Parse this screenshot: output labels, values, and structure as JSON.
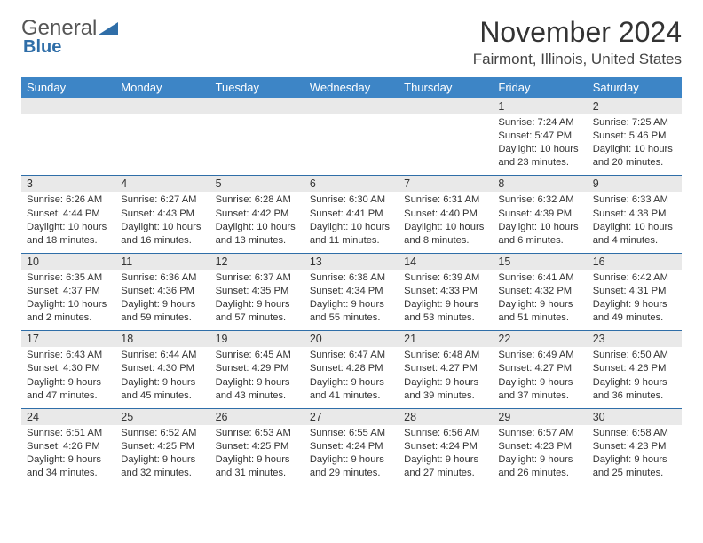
{
  "logo": {
    "word1": "General",
    "word2": "Blue"
  },
  "header": {
    "month_title": "November 2024",
    "location": "Fairmont, Illinois, United States"
  },
  "colors": {
    "header_bg": "#3d85c6",
    "rule": "#2f6ea8",
    "daynum_bg": "#e9e9e9"
  },
  "weekday_labels": [
    "Sunday",
    "Monday",
    "Tuesday",
    "Wednesday",
    "Thursday",
    "Friday",
    "Saturday"
  ],
  "weeks": [
    [
      {
        "day": "",
        "sunrise": "",
        "sunset": "",
        "daylight": ""
      },
      {
        "day": "",
        "sunrise": "",
        "sunset": "",
        "daylight": ""
      },
      {
        "day": "",
        "sunrise": "",
        "sunset": "",
        "daylight": ""
      },
      {
        "day": "",
        "sunrise": "",
        "sunset": "",
        "daylight": ""
      },
      {
        "day": "",
        "sunrise": "",
        "sunset": "",
        "daylight": ""
      },
      {
        "day": "1",
        "sunrise": "Sunrise: 7:24 AM",
        "sunset": "Sunset: 5:47 PM",
        "daylight": "Daylight: 10 hours and 23 minutes."
      },
      {
        "day": "2",
        "sunrise": "Sunrise: 7:25 AM",
        "sunset": "Sunset: 5:46 PM",
        "daylight": "Daylight: 10 hours and 20 minutes."
      }
    ],
    [
      {
        "day": "3",
        "sunrise": "Sunrise: 6:26 AM",
        "sunset": "Sunset: 4:44 PM",
        "daylight": "Daylight: 10 hours and 18 minutes."
      },
      {
        "day": "4",
        "sunrise": "Sunrise: 6:27 AM",
        "sunset": "Sunset: 4:43 PM",
        "daylight": "Daylight: 10 hours and 16 minutes."
      },
      {
        "day": "5",
        "sunrise": "Sunrise: 6:28 AM",
        "sunset": "Sunset: 4:42 PM",
        "daylight": "Daylight: 10 hours and 13 minutes."
      },
      {
        "day": "6",
        "sunrise": "Sunrise: 6:30 AM",
        "sunset": "Sunset: 4:41 PM",
        "daylight": "Daylight: 10 hours and 11 minutes."
      },
      {
        "day": "7",
        "sunrise": "Sunrise: 6:31 AM",
        "sunset": "Sunset: 4:40 PM",
        "daylight": "Daylight: 10 hours and 8 minutes."
      },
      {
        "day": "8",
        "sunrise": "Sunrise: 6:32 AM",
        "sunset": "Sunset: 4:39 PM",
        "daylight": "Daylight: 10 hours and 6 minutes."
      },
      {
        "day": "9",
        "sunrise": "Sunrise: 6:33 AM",
        "sunset": "Sunset: 4:38 PM",
        "daylight": "Daylight: 10 hours and 4 minutes."
      }
    ],
    [
      {
        "day": "10",
        "sunrise": "Sunrise: 6:35 AM",
        "sunset": "Sunset: 4:37 PM",
        "daylight": "Daylight: 10 hours and 2 minutes."
      },
      {
        "day": "11",
        "sunrise": "Sunrise: 6:36 AM",
        "sunset": "Sunset: 4:36 PM",
        "daylight": "Daylight: 9 hours and 59 minutes."
      },
      {
        "day": "12",
        "sunrise": "Sunrise: 6:37 AM",
        "sunset": "Sunset: 4:35 PM",
        "daylight": "Daylight: 9 hours and 57 minutes."
      },
      {
        "day": "13",
        "sunrise": "Sunrise: 6:38 AM",
        "sunset": "Sunset: 4:34 PM",
        "daylight": "Daylight: 9 hours and 55 minutes."
      },
      {
        "day": "14",
        "sunrise": "Sunrise: 6:39 AM",
        "sunset": "Sunset: 4:33 PM",
        "daylight": "Daylight: 9 hours and 53 minutes."
      },
      {
        "day": "15",
        "sunrise": "Sunrise: 6:41 AM",
        "sunset": "Sunset: 4:32 PM",
        "daylight": "Daylight: 9 hours and 51 minutes."
      },
      {
        "day": "16",
        "sunrise": "Sunrise: 6:42 AM",
        "sunset": "Sunset: 4:31 PM",
        "daylight": "Daylight: 9 hours and 49 minutes."
      }
    ],
    [
      {
        "day": "17",
        "sunrise": "Sunrise: 6:43 AM",
        "sunset": "Sunset: 4:30 PM",
        "daylight": "Daylight: 9 hours and 47 minutes."
      },
      {
        "day": "18",
        "sunrise": "Sunrise: 6:44 AM",
        "sunset": "Sunset: 4:30 PM",
        "daylight": "Daylight: 9 hours and 45 minutes."
      },
      {
        "day": "19",
        "sunrise": "Sunrise: 6:45 AM",
        "sunset": "Sunset: 4:29 PM",
        "daylight": "Daylight: 9 hours and 43 minutes."
      },
      {
        "day": "20",
        "sunrise": "Sunrise: 6:47 AM",
        "sunset": "Sunset: 4:28 PM",
        "daylight": "Daylight: 9 hours and 41 minutes."
      },
      {
        "day": "21",
        "sunrise": "Sunrise: 6:48 AM",
        "sunset": "Sunset: 4:27 PM",
        "daylight": "Daylight: 9 hours and 39 minutes."
      },
      {
        "day": "22",
        "sunrise": "Sunrise: 6:49 AM",
        "sunset": "Sunset: 4:27 PM",
        "daylight": "Daylight: 9 hours and 37 minutes."
      },
      {
        "day": "23",
        "sunrise": "Sunrise: 6:50 AM",
        "sunset": "Sunset: 4:26 PM",
        "daylight": "Daylight: 9 hours and 36 minutes."
      }
    ],
    [
      {
        "day": "24",
        "sunrise": "Sunrise: 6:51 AM",
        "sunset": "Sunset: 4:26 PM",
        "daylight": "Daylight: 9 hours and 34 minutes."
      },
      {
        "day": "25",
        "sunrise": "Sunrise: 6:52 AM",
        "sunset": "Sunset: 4:25 PM",
        "daylight": "Daylight: 9 hours and 32 minutes."
      },
      {
        "day": "26",
        "sunrise": "Sunrise: 6:53 AM",
        "sunset": "Sunset: 4:25 PM",
        "daylight": "Daylight: 9 hours and 31 minutes."
      },
      {
        "day": "27",
        "sunrise": "Sunrise: 6:55 AM",
        "sunset": "Sunset: 4:24 PM",
        "daylight": "Daylight: 9 hours and 29 minutes."
      },
      {
        "day": "28",
        "sunrise": "Sunrise: 6:56 AM",
        "sunset": "Sunset: 4:24 PM",
        "daylight": "Daylight: 9 hours and 27 minutes."
      },
      {
        "day": "29",
        "sunrise": "Sunrise: 6:57 AM",
        "sunset": "Sunset: 4:23 PM",
        "daylight": "Daylight: 9 hours and 26 minutes."
      },
      {
        "day": "30",
        "sunrise": "Sunrise: 6:58 AM",
        "sunset": "Sunset: 4:23 PM",
        "daylight": "Daylight: 9 hours and 25 minutes."
      }
    ]
  ]
}
